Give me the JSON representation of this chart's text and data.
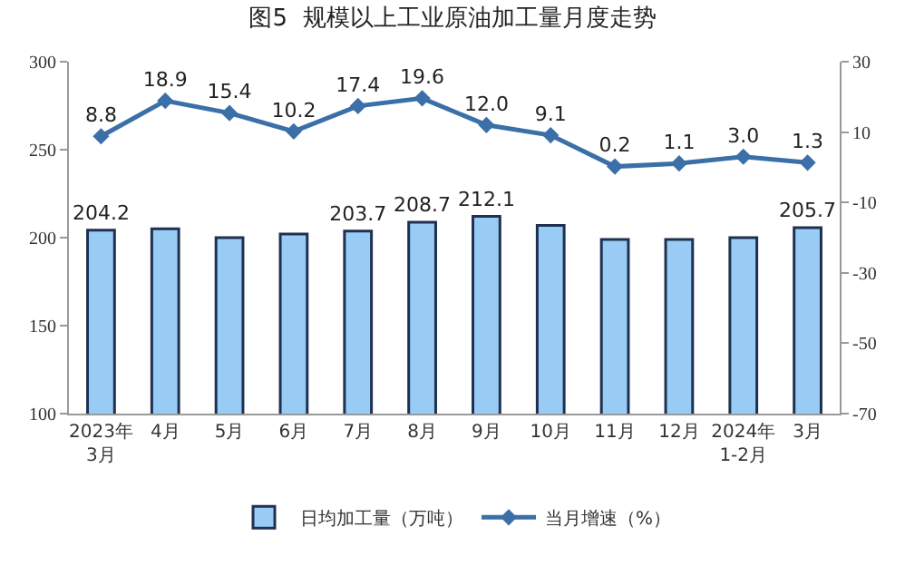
{
  "chart_data": {
    "type": "bar",
    "title": "图5  规模以上工业原油加工量月度走势",
    "categories": [
      "2023年\n3月",
      "4月",
      "5月",
      "6月",
      "7月",
      "8月",
      "9月",
      "10月",
      "11月",
      "12月",
      "2024年\n1-2月",
      "3月"
    ],
    "series": [
      {
        "name": "日均加工量（万吨）",
        "color": "#99ccf5",
        "values": [
          204.2,
          205,
          200,
          202,
          203.7,
          208.7,
          212.1,
          207,
          199,
          199,
          200,
          205.7
        ],
        "value_labels": [
          "204.2",
          null,
          null,
          null,
          "203.7",
          "208.7",
          "212.1",
          null,
          null,
          null,
          null,
          "205.7"
        ]
      },
      {
        "name": "当月增速（%）",
        "type": "line",
        "axis": "y2",
        "color": "#3a6fa8",
        "marker": "diamond",
        "values": [
          8.8,
          18.9,
          15.4,
          10.2,
          17.4,
          19.6,
          12.0,
          9.1,
          0.2,
          1.1,
          3.0,
          1.3
        ],
        "value_labels": [
          "8.8",
          "18.9",
          "15.4",
          "10.2",
          "17.4",
          "19.6",
          "12.0",
          "9.1",
          "0.2",
          "1.1",
          "3.0",
          "1.3"
        ]
      }
    ],
    "ylim": [
      100,
      300
    ],
    "yticks": [
      100,
      150,
      200,
      250,
      300
    ],
    "y2lim": [
      -70,
      30
    ],
    "y2ticks": [
      -70,
      -50,
      -30,
      -10,
      10,
      30
    ],
    "legend": "bottom"
  }
}
